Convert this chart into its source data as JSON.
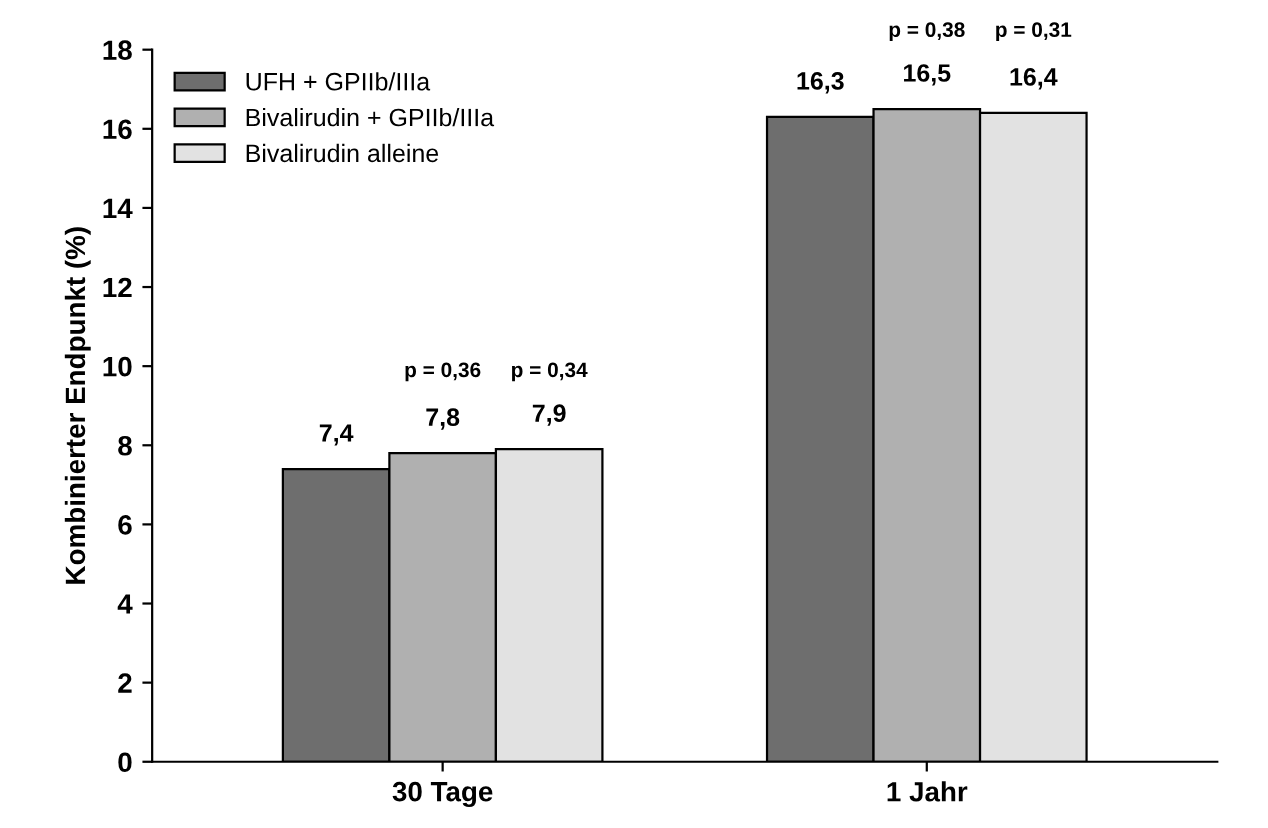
{
  "chart_data": {
    "type": "bar",
    "ylabel": "Kombinierter Endpunkt (%)",
    "categories": [
      "30 Tage",
      "1 Jahr"
    ],
    "series": [
      {
        "name": "UFH + GPIIb/IIIa",
        "color": "#6e6e6e",
        "values": [
          7.4,
          16.3
        ],
        "value_labels": [
          "7,4",
          "16,3"
        ]
      },
      {
        "name": "Bivalirudin + GPIIb/IIIa",
        "color": "#b0b0b0",
        "values": [
          7.8,
          16.5
        ],
        "value_labels": [
          "7,8",
          "16,5"
        ]
      },
      {
        "name": "Bivalirudin alleine",
        "color": "#e2e2e2",
        "values": [
          7.9,
          16.4
        ],
        "value_labels": [
          "7,9",
          "16,4"
        ]
      }
    ],
    "annotations": [
      "p = 0,36",
      "p = 0,34",
      "p = 0,38",
      "p = 0,31"
    ],
    "ylim": [
      0,
      18
    ],
    "yticks": [
      0,
      2,
      4,
      6,
      8,
      10,
      12,
      14,
      16,
      18
    ],
    "grid": false,
    "legend": "top left"
  }
}
